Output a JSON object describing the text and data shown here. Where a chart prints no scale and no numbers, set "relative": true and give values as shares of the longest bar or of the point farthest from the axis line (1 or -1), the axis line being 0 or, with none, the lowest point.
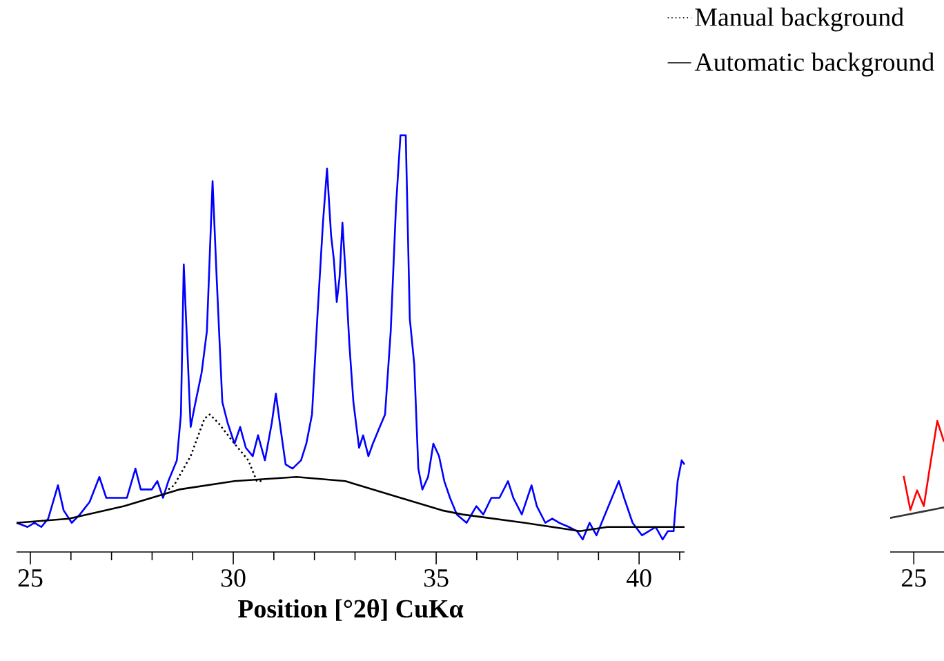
{
  "chart_data": [
    {
      "type": "line",
      "relative": true,
      "xlabel": "Position [°2θ] CuKα",
      "xlim": [
        24.66,
        41.12
      ],
      "xticks": [
        25,
        {
          "value": 26,
          "label": null
        },
        {
          "value": 27,
          "label": null
        },
        {
          "value": 28,
          "label": null
        },
        {
          "value": 29,
          "label": null
        },
        30,
        {
          "value": 31,
          "label": null
        },
        {
          "value": 32,
          "label": null
        },
        {
          "value": 33,
          "label": null
        },
        {
          "value": 34,
          "label": null
        },
        35,
        {
          "value": 36,
          "label": null
        },
        {
          "value": 37,
          "label": null
        },
        {
          "value": 38,
          "label": null
        },
        {
          "value": 39,
          "label": null
        },
        40,
        {
          "value": 41,
          "label": null
        }
      ],
      "tick_labels": "x",
      "legend": "top right",
      "marker": "none",
      "series": [
        {
          "color": "#0000ff",
          "line_style": "solid",
          "x": [
            24.66,
            24.93,
            25.1,
            25.27,
            25.44,
            25.68,
            25.82,
            26.02,
            26.22,
            26.46,
            26.7,
            26.87,
            27.14,
            27.38,
            27.59,
            27.72,
            27.99,
            28.13,
            28.27,
            28.4,
            28.61,
            28.71,
            28.78,
            28.88,
            28.95,
            29.05,
            29.22,
            29.35,
            29.49,
            29.59,
            29.73,
            29.86,
            30.03,
            30.17,
            30.31,
            30.48,
            30.61,
            30.78,
            30.95,
            31.05,
            31.16,
            31.29,
            31.46,
            31.67,
            31.8,
            31.94,
            32.07,
            32.21,
            32.31,
            32.41,
            32.48,
            32.55,
            32.62,
            32.69,
            32.76,
            32.86,
            32.96,
            33.1,
            33.2,
            33.33,
            33.44,
            33.61,
            33.74,
            33.88,
            34.01,
            34.12,
            34.25,
            34.35,
            34.46,
            34.56,
            34.66,
            34.8,
            34.93,
            35.07,
            35.2,
            35.34,
            35.51,
            35.75,
            35.99,
            36.16,
            36.36,
            36.56,
            36.77,
            36.9,
            37.11,
            37.35,
            37.48,
            37.69,
            37.86,
            38.03,
            38.27,
            38.47,
            38.61,
            38.78,
            38.95,
            39.16,
            39.5,
            39.63,
            39.84,
            40.07,
            40.24,
            40.41,
            40.58,
            40.71,
            40.85,
            40.95,
            41.05,
            41.12
          ],
          "values": [
            0.07,
            0.06,
            0.07,
            0.06,
            0.08,
            0.16,
            0.1,
            0.07,
            0.09,
            0.12,
            0.18,
            0.13,
            0.13,
            0.13,
            0.2,
            0.15,
            0.15,
            0.17,
            0.13,
            0.17,
            0.22,
            0.33,
            0.69,
            0.46,
            0.3,
            0.35,
            0.43,
            0.53,
            0.89,
            0.66,
            0.36,
            0.31,
            0.26,
            0.3,
            0.25,
            0.23,
            0.28,
            0.22,
            0.31,
            0.38,
            0.3,
            0.21,
            0.2,
            0.22,
            0.26,
            0.33,
            0.56,
            0.79,
            0.92,
            0.76,
            0.7,
            0.6,
            0.66,
            0.79,
            0.68,
            0.5,
            0.36,
            0.25,
            0.28,
            0.23,
            0.26,
            0.3,
            0.33,
            0.53,
            0.83,
            1,
            1,
            0.56,
            0.45,
            0.2,
            0.15,
            0.18,
            0.26,
            0.23,
            0.17,
            0.13,
            0.09,
            0.07,
            0.11,
            0.09,
            0.13,
            0.13,
            0.17,
            0.13,
            0.09,
            0.16,
            0.11,
            0.07,
            0.08,
            0.07,
            0.06,
            0.05,
            0.03,
            0.07,
            0.04,
            0.09,
            0.17,
            0.13,
            0.07,
            0.04,
            0.05,
            0.06,
            0.03,
            0.05,
            0.05,
            0.17,
            0.22,
            0.21
          ]
        },
        {
          "name": "Manual background",
          "color": "#000000",
          "line_style": "dotted",
          "x": [
            28.4,
            28.54,
            28.95,
            29.29,
            29.42,
            29.63,
            30.03,
            30.37,
            30.58,
            30.7
          ],
          "values": [
            0.15,
            0.16,
            0.23,
            0.32,
            0.33,
            0.31,
            0.26,
            0.22,
            0.17,
            0.17
          ]
        },
        {
          "name": "Automatic background",
          "color": "#000000",
          "line_style": "solid",
          "x": [
            24.66,
            25.95,
            27.31,
            28.67,
            30.03,
            31.56,
            32.76,
            34.12,
            35.14,
            35.65,
            37.18,
            38.54,
            39.22,
            41.12
          ],
          "values": [
            0.07,
            0.08,
            0.11,
            0.15,
            0.17,
            0.18,
            0.17,
            0.13,
            0.1,
            0.09,
            0.07,
            0.05,
            0.06,
            0.06
          ]
        }
      ]
    },
    {
      "type": "line",
      "relative": true,
      "categories": [
        null,
        null,
        null,
        null,
        null,
        null,
        null,
        null,
        null
      ],
      "annotations": [
        "25"
      ],
      "marker": "none",
      "series": [
        {
          "color": "#ff0000",
          "line_style": "solid",
          "values": [
            null,
            null,
            0.58,
            0.32,
            0.47,
            0.35,
            0.68,
            1,
            0.84
          ]
        },
        {
          "color": "#333333",
          "line_style": "solid",
          "values": [
            0.26,
            0.27,
            0.28,
            0.29,
            0.3,
            0.31,
            0.32,
            0.33,
            0.34
          ]
        }
      ]
    }
  ]
}
